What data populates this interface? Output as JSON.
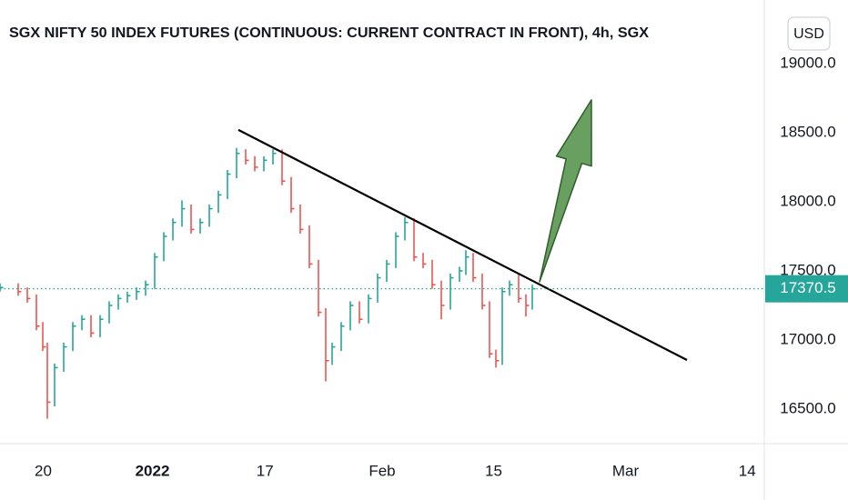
{
  "chart_data": {
    "type": "ohlc-bars",
    "title": "SGX NIFTY 50 INDEX FUTURES (CONTINUOUS: CURRENT CONTRACT IN FRONT), 4h, SGX",
    "currency": "USD",
    "x": [
      0,
      1.6,
      2.4,
      3.2,
      3.76,
      4.16,
      4.8,
      5.6,
      6.4,
      7.2,
      8,
      8.8,
      9.6,
      10.4,
      11.2,
      12,
      12.8,
      13.6,
      14.4,
      15.2,
      16,
      16.8,
      17.6,
      18.4,
      19.2,
      20,
      20.8,
      21.6,
      22.4,
      23.2,
      24,
      24.8,
      25.6,
      26.4,
      27.2,
      28,
      28.64,
      29.2,
      30,
      30.8,
      31.6,
      32.4,
      33.2,
      34,
      34.8,
      35.6,
      36.4,
      37.2,
      38,
      38.8,
      39.6,
      40.4,
      40.96,
      41.6,
      42.4,
      43.04,
      43.6,
      44.16,
      44.8,
      45.6,
      46.24,
      46.8
    ],
    "high": [
      17410,
      17410,
      17380,
      17330,
      17130,
      16980,
      16830,
      16980,
      17130,
      17180,
      17180,
      17180,
      17280,
      17330,
      17350,
      17380,
      17430,
      17630,
      17780,
      17880,
      18010,
      17980,
      17880,
      17980,
      18080,
      18230,
      18390,
      18380,
      18330,
      18330,
      18380,
      18380,
      18180,
      17980,
      17830,
      17580,
      17230,
      16980,
      17130,
      17280,
      17280,
      17330,
      17480,
      17580,
      17780,
      17890,
      17880,
      17630,
      17580,
      17430,
      17480,
      17530,
      17650,
      17630,
      17480,
      17280,
      16930,
      17380,
      17430,
      17480,
      17330,
      17400
    ],
    "low": [
      17350,
      17320,
      17270,
      17070,
      16920,
      16430,
      16520,
      16770,
      16920,
      17070,
      17020,
      17020,
      17120,
      17220,
      17270,
      17290,
      17320,
      17370,
      17570,
      17720,
      17820,
      17770,
      17770,
      17820,
      17920,
      18020,
      18170,
      18270,
      18220,
      18220,
      18270,
      18120,
      17920,
      17770,
      17520,
      17170,
      16700,
      16820,
      16920,
      17070,
      17120,
      17120,
      17270,
      17420,
      17520,
      17720,
      17570,
      17520,
      17370,
      17150,
      17220,
      17420,
      17470,
      17420,
      17220,
      16870,
      16800,
      16820,
      17320,
      17270,
      17170,
      17220
    ],
    "close": [
      17380,
      17350,
      17300,
      17100,
      16950,
      16550,
      16800,
      16950,
      17100,
      17150,
      17050,
      17150,
      17250,
      17300,
      17320,
      17350,
      17400,
      17600,
      17750,
      17850,
      17950,
      17800,
      17850,
      17950,
      18050,
      18200,
      18350,
      18300,
      18250,
      18300,
      18350,
      18150,
      17950,
      17800,
      17550,
      17200,
      16850,
      16950,
      17100,
      17250,
      17150,
      17300,
      17450,
      17550,
      17750,
      17850,
      17600,
      17550,
      17400,
      17250,
      17450,
      17500,
      17600,
      17450,
      17250,
      16900,
      16850,
      17350,
      17400,
      17300,
      17250,
      17370.5
    ],
    "up_color": "#26a69a",
    "down_color": "#ef5350",
    "last_price": 17370.5,
    "trendline": {
      "x": [
        20.96,
        60.4
      ],
      "y": [
        18520,
        16855
      ],
      "color": "#000000"
    },
    "arrow": {
      "x": [
        47.44,
        52
      ],
      "y": [
        17421,
        18737
      ],
      "color": "#6a9f62"
    },
    "xlim": [
      0,
      67.2
    ],
    "ylim": [
      16250,
      19460
    ],
    "xticks": [
      {
        "value": 3.8,
        "label": "20"
      },
      {
        "value": 13.4,
        "label": "2022"
      },
      {
        "value": 23.3,
        "label": "17"
      },
      {
        "value": 33.6,
        "label": "Feb"
      },
      {
        "value": 43.4,
        "label": "15"
      },
      {
        "value": 55,
        "label": "Mar"
      },
      {
        "value": 65.7,
        "label": "14"
      }
    ],
    "yticks": [
      {
        "value": 16500,
        "label": "16500.0"
      },
      {
        "value": 17000,
        "label": "17000.0"
      },
      {
        "value": 17500,
        "label": "17500.0"
      },
      {
        "value": 18000,
        "label": "18000.0"
      },
      {
        "value": 18500,
        "label": "18500.0"
      },
      {
        "value": 19000,
        "label": "19000.0"
      }
    ]
  }
}
